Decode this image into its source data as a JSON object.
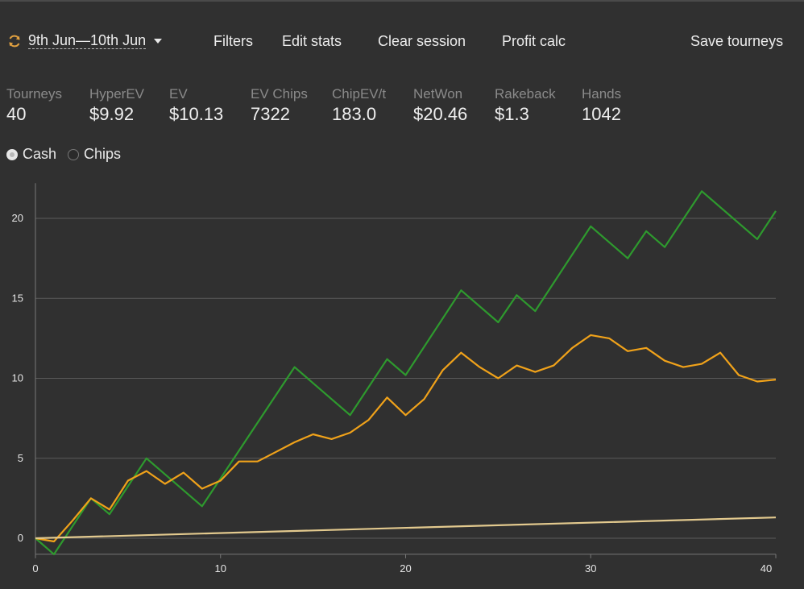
{
  "toolbar": {
    "date_range": "9th Jun—10th Jun",
    "filters": "Filters",
    "edit_stats": "Edit stats",
    "clear_session": "Clear session",
    "profit_calc": "Profit calc",
    "save_tourneys": "Save tourneys"
  },
  "stats": [
    {
      "label": "Tourneys",
      "value": "40"
    },
    {
      "label": "HyperEV",
      "value": "$9.92"
    },
    {
      "label": "EV",
      "value": "$10.13"
    },
    {
      "label": "EV Chips",
      "value": "7322"
    },
    {
      "label": "ChipEV/t",
      "value": "183.0"
    },
    {
      "label": "NetWon",
      "value": "$20.46"
    },
    {
      "label": "Rakeback",
      "value": "$1.3"
    },
    {
      "label": "Hands",
      "value": "1042"
    }
  ],
  "mode": {
    "options": [
      "Cash",
      "Chips"
    ],
    "selected": "Cash"
  },
  "chart_data": {
    "type": "line",
    "xlim": [
      0,
      40
    ],
    "ylim": [
      -1,
      22
    ],
    "x_ticks": [
      0,
      10,
      20,
      30,
      40
    ],
    "y_ticks": [
      0,
      5,
      10,
      15,
      20
    ],
    "grid": "horizontal",
    "series": [
      {
        "color": "#2e9a2e",
        "points": [
          [
            0,
            0
          ],
          [
            1,
            -1
          ],
          [
            3,
            2.5
          ],
          [
            4,
            1.5
          ],
          [
            6,
            5
          ],
          [
            9,
            2
          ],
          [
            14,
            10.7
          ],
          [
            17,
            7.7
          ],
          [
            19,
            11.2
          ],
          [
            20,
            10.2
          ],
          [
            23,
            15.5
          ],
          [
            25,
            13.5
          ],
          [
            26,
            15.2
          ],
          [
            27,
            14.2
          ],
          [
            30,
            19.5
          ],
          [
            32,
            17.5
          ],
          [
            33,
            19.2
          ],
          [
            34,
            18.2
          ],
          [
            36,
            21.7
          ],
          [
            39,
            18.7
          ],
          [
            40,
            20.46
          ]
        ]
      },
      {
        "color": "#f0a21a",
        "points": [
          [
            0,
            0
          ],
          [
            1,
            -0.2
          ],
          [
            2,
            1.1
          ],
          [
            3,
            2.5
          ],
          [
            4,
            1.8
          ],
          [
            5,
            3.6
          ],
          [
            6,
            4.2
          ],
          [
            7,
            3.4
          ],
          [
            8,
            4.1
          ],
          [
            9,
            3.1
          ],
          [
            10,
            3.6
          ],
          [
            11,
            4.8
          ],
          [
            12,
            4.8
          ],
          [
            13,
            5.4
          ],
          [
            14,
            6.0
          ],
          [
            15,
            6.5
          ],
          [
            16,
            6.2
          ],
          [
            17,
            6.6
          ],
          [
            18,
            7.4
          ],
          [
            19,
            8.8
          ],
          [
            20,
            7.7
          ],
          [
            21,
            8.7
          ],
          [
            22,
            10.5
          ],
          [
            23,
            11.6
          ],
          [
            24,
            10.7
          ],
          [
            25,
            10.0
          ],
          [
            26,
            10.8
          ],
          [
            27,
            10.4
          ],
          [
            28,
            10.8
          ],
          [
            29,
            11.9
          ],
          [
            30,
            12.7
          ],
          [
            31,
            12.5
          ],
          [
            32,
            11.7
          ],
          [
            33,
            11.9
          ],
          [
            34,
            11.1
          ],
          [
            35,
            10.7
          ],
          [
            36,
            10.9
          ],
          [
            37,
            11.6
          ],
          [
            38,
            10.2
          ],
          [
            39,
            9.8
          ],
          [
            40,
            9.92
          ]
        ]
      },
      {
        "color": "#e2c98e",
        "points": [
          [
            0,
            0
          ],
          [
            40,
            1.3
          ]
        ]
      }
    ]
  }
}
